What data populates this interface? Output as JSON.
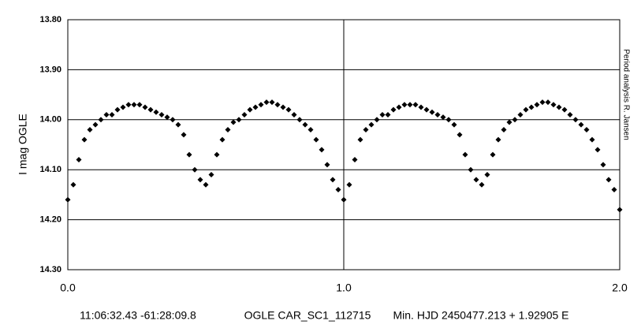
{
  "chart_data": {
    "type": "scatter",
    "y_label": "I mag OGLE",
    "side_note": "Period analysis R. Jansen",
    "captions": [
      "11:06:32.43 -61:28:09.8",
      "OGLE CAR_SC1_112715",
      "Min. HJD 2450477.213 + 1.92905 E"
    ],
    "color": "#000000",
    "invert_y": true,
    "grid": true,
    "xlim": [
      0,
      2
    ],
    "ylim": [
      13.8,
      14.3
    ],
    "xticks": [
      {
        "value": 0,
        "label": "0.0"
      },
      {
        "value": 1,
        "label": "1.0"
      },
      {
        "value": 2,
        "label": "2.0"
      }
    ],
    "yticks": [
      {
        "value": 13.8,
        "label": "13.80"
      },
      {
        "value": 13.9,
        "label": "13.90"
      },
      {
        "value": 14.0,
        "label": "14.00"
      },
      {
        "value": 14.1,
        "label": "14.10"
      },
      {
        "value": 14.2,
        "label": "14.20"
      },
      {
        "value": 14.3,
        "label": "14.30"
      }
    ],
    "x": [
      0.0,
      0.02,
      0.04,
      0.06,
      0.08,
      0.1,
      0.12,
      0.14,
      0.16,
      0.18,
      0.2,
      0.22,
      0.24,
      0.26,
      0.28,
      0.3,
      0.32,
      0.34,
      0.36,
      0.38,
      0.4,
      0.42,
      0.44,
      0.46,
      0.48,
      0.5,
      0.52,
      0.54,
      0.56,
      0.58,
      0.6,
      0.62,
      0.64,
      0.66,
      0.68,
      0.7,
      0.72,
      0.74,
      0.76,
      0.78,
      0.8,
      0.82,
      0.84,
      0.86,
      0.88,
      0.9,
      0.92,
      0.94,
      0.96,
      0.98,
      1.0,
      1.02,
      1.04,
      1.06,
      1.08,
      1.1,
      1.12,
      1.14,
      1.16,
      1.18,
      1.2,
      1.22,
      1.24,
      1.26,
      1.28,
      1.3,
      1.32,
      1.34,
      1.36,
      1.38,
      1.4,
      1.42,
      1.44,
      1.46,
      1.48,
      1.5,
      1.52,
      1.54,
      1.56,
      1.58,
      1.6,
      1.62,
      1.64,
      1.66,
      1.68,
      1.7,
      1.72,
      1.74,
      1.76,
      1.78,
      1.8,
      1.82,
      1.84,
      1.86,
      1.88,
      1.9,
      1.92,
      1.94,
      1.96,
      1.98,
      2.0
    ],
    "values": [
      14.16,
      14.13,
      14.08,
      14.04,
      14.02,
      14.01,
      14.0,
      13.99,
      13.99,
      13.98,
      13.975,
      13.97,
      13.97,
      13.97,
      13.975,
      13.98,
      13.985,
      13.99,
      13.995,
      14.0,
      14.01,
      14.03,
      14.07,
      14.1,
      14.12,
      14.13,
      14.11,
      14.07,
      14.04,
      14.02,
      14.005,
      14.0,
      13.99,
      13.98,
      13.975,
      13.97,
      13.965,
      13.965,
      13.97,
      13.975,
      13.98,
      13.99,
      14.0,
      14.01,
      14.02,
      14.04,
      14.06,
      14.09,
      14.12,
      14.14,
      14.16,
      14.13,
      14.08,
      14.04,
      14.02,
      14.01,
      14.0,
      13.99,
      13.99,
      13.98,
      13.975,
      13.97,
      13.97,
      13.97,
      13.975,
      13.98,
      13.985,
      13.99,
      13.995,
      14.0,
      14.01,
      14.03,
      14.07,
      14.1,
      14.12,
      14.13,
      14.11,
      14.07,
      14.04,
      14.02,
      14.005,
      14.0,
      13.99,
      13.98,
      13.975,
      13.97,
      13.965,
      13.965,
      13.97,
      13.975,
      13.98,
      13.99,
      14.0,
      14.01,
      14.02,
      14.04,
      14.06,
      14.09,
      14.12,
      14.14,
      14.18
    ]
  }
}
